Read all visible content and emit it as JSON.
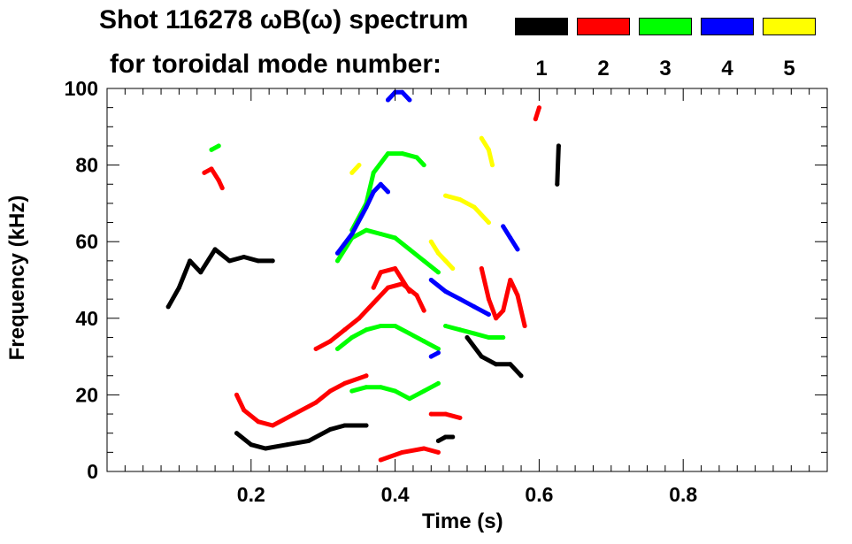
{
  "chart_data": {
    "type": "scatter",
    "title": "Shot 116278 ωB(ω) spectrum",
    "subtitle": "for toroidal mode number:",
    "xlabel": "Time (s)",
    "ylabel": "Frequency (kHz)",
    "xlim": [
      0.0,
      1.0
    ],
    "ylim": [
      0,
      100
    ],
    "x_ticks": [
      0.2,
      0.4,
      0.6,
      0.8
    ],
    "x_tick_labels": [
      "0.2",
      "0.4",
      "0.6",
      "0.8"
    ],
    "y_ticks": [
      0,
      20,
      40,
      60,
      80,
      100
    ],
    "y_tick_labels": [
      "0",
      "20",
      "40",
      "60",
      "80",
      "100"
    ],
    "legend": [
      {
        "label": "1",
        "color": "#000000"
      },
      {
        "label": "2",
        "color": "#ff0000"
      },
      {
        "label": "3",
        "color": "#00ff00"
      },
      {
        "label": "4",
        "color": "#0000ff"
      },
      {
        "label": "5",
        "color": "#ffff00"
      }
    ],
    "series": [
      {
        "name": "1",
        "color": "#000000",
        "segments": [
          [
            [
              0.085,
              43
            ],
            [
              0.1,
              48
            ],
            [
              0.115,
              55
            ],
            [
              0.13,
              52
            ],
            [
              0.15,
              58
            ],
            [
              0.17,
              55
            ],
            [
              0.19,
              56
            ],
            [
              0.21,
              55
            ],
            [
              0.23,
              55
            ]
          ],
          [
            [
              0.18,
              10
            ],
            [
              0.2,
              7
            ],
            [
              0.22,
              6
            ],
            [
              0.25,
              7
            ],
            [
              0.28,
              8
            ],
            [
              0.31,
              11
            ],
            [
              0.33,
              12
            ],
            [
              0.36,
              12
            ]
          ],
          [
            [
              0.46,
              8
            ],
            [
              0.47,
              9
            ],
            [
              0.48,
              9
            ]
          ],
          [
            [
              0.5,
              35
            ],
            [
              0.52,
              30
            ],
            [
              0.54,
              28
            ],
            [
              0.56,
              28
            ],
            [
              0.575,
              25
            ]
          ],
          [
            [
              0.625,
              75
            ],
            [
              0.627,
              85
            ]
          ]
        ]
      },
      {
        "name": "2",
        "color": "#ff0000",
        "segments": [
          [
            [
              0.135,
              78
            ],
            [
              0.145,
              79
            ],
            [
              0.155,
              76
            ],
            [
              0.16,
              74
            ]
          ],
          [
            [
              0.18,
              20
            ],
            [
              0.19,
              16
            ],
            [
              0.21,
              13
            ],
            [
              0.23,
              12
            ],
            [
              0.26,
              15
            ],
            [
              0.29,
              18
            ],
            [
              0.31,
              21
            ],
            [
              0.33,
              23
            ],
            [
              0.36,
              25
            ]
          ],
          [
            [
              0.29,
              32
            ],
            [
              0.31,
              34
            ],
            [
              0.33,
              37
            ],
            [
              0.35,
              40
            ],
            [
              0.37,
              44
            ],
            [
              0.39,
              48
            ],
            [
              0.41,
              49
            ],
            [
              0.43,
              46
            ],
            [
              0.44,
              42
            ]
          ],
          [
            [
              0.37,
              48
            ],
            [
              0.38,
              52
            ],
            [
              0.4,
              53
            ],
            [
              0.42,
              47
            ]
          ],
          [
            [
              0.45,
              15
            ],
            [
              0.47,
              15
            ],
            [
              0.49,
              14
            ]
          ],
          [
            [
              0.38,
              3
            ],
            [
              0.41,
              5
            ],
            [
              0.44,
              6
            ],
            [
              0.46,
              5
            ]
          ],
          [
            [
              0.52,
              53
            ],
            [
              0.53,
              45
            ],
            [
              0.54,
              40
            ],
            [
              0.55,
              42
            ],
            [
              0.56,
              50
            ],
            [
              0.57,
              46
            ],
            [
              0.58,
              38
            ]
          ],
          [
            [
              0.595,
              92
            ],
            [
              0.6,
              95
            ]
          ]
        ]
      },
      {
        "name": "3",
        "color": "#00ff00",
        "segments": [
          [
            [
              0.145,
              84
            ],
            [
              0.155,
              85
            ]
          ],
          [
            [
              0.32,
              32
            ],
            [
              0.34,
              35
            ],
            [
              0.36,
              37
            ],
            [
              0.38,
              38
            ],
            [
              0.4,
              38
            ],
            [
              0.42,
              36
            ],
            [
              0.44,
              34
            ],
            [
              0.46,
              32
            ]
          ],
          [
            [
              0.32,
              55
            ],
            [
              0.34,
              61
            ],
            [
              0.36,
              63
            ],
            [
              0.38,
              62
            ],
            [
              0.4,
              61
            ],
            [
              0.42,
              58
            ],
            [
              0.44,
              55
            ],
            [
              0.46,
              52
            ]
          ],
          [
            [
              0.34,
              63
            ],
            [
              0.36,
              70
            ],
            [
              0.37,
              78
            ],
            [
              0.39,
              83
            ],
            [
              0.41,
              83
            ],
            [
              0.43,
              82
            ],
            [
              0.44,
              80
            ]
          ],
          [
            [
              0.34,
              21
            ],
            [
              0.36,
              22
            ],
            [
              0.38,
              22
            ],
            [
              0.4,
              21
            ],
            [
              0.42,
              19
            ],
            [
              0.44,
              21
            ],
            [
              0.46,
              23
            ]
          ],
          [
            [
              0.47,
              38
            ],
            [
              0.49,
              37
            ],
            [
              0.51,
              36
            ],
            [
              0.53,
              35
            ],
            [
              0.55,
              35
            ]
          ]
        ]
      },
      {
        "name": "4",
        "color": "#0000ff",
        "segments": [
          [
            [
              0.32,
              57
            ],
            [
              0.34,
              62
            ],
            [
              0.36,
              69
            ],
            [
              0.37,
              73
            ],
            [
              0.38,
              75
            ],
            [
              0.39,
              73
            ]
          ],
          [
            [
              0.39,
              97
            ],
            [
              0.4,
              99
            ],
            [
              0.41,
              99
            ],
            [
              0.42,
              97
            ]
          ],
          [
            [
              0.45,
              50
            ],
            [
              0.47,
              47
            ],
            [
              0.49,
              45
            ],
            [
              0.51,
              43
            ],
            [
              0.53,
              41
            ]
          ],
          [
            [
              0.45,
              30
            ],
            [
              0.46,
              31
            ]
          ],
          [
            [
              0.55,
              64
            ],
            [
              0.56,
              61
            ],
            [
              0.57,
              58
            ]
          ]
        ]
      },
      {
        "name": "5",
        "color": "#ffff00",
        "segments": [
          [
            [
              0.34,
              78
            ],
            [
              0.35,
              80
            ]
          ],
          [
            [
              0.45,
              60
            ],
            [
              0.46,
              57
            ],
            [
              0.47,
              55
            ],
            [
              0.48,
              53
            ]
          ],
          [
            [
              0.47,
              72
            ],
            [
              0.49,
              71
            ],
            [
              0.51,
              69
            ],
            [
              0.53,
              65
            ]
          ],
          [
            [
              0.52,
              87
            ],
            [
              0.53,
              84
            ],
            [
              0.535,
              80
            ]
          ]
        ]
      }
    ]
  }
}
